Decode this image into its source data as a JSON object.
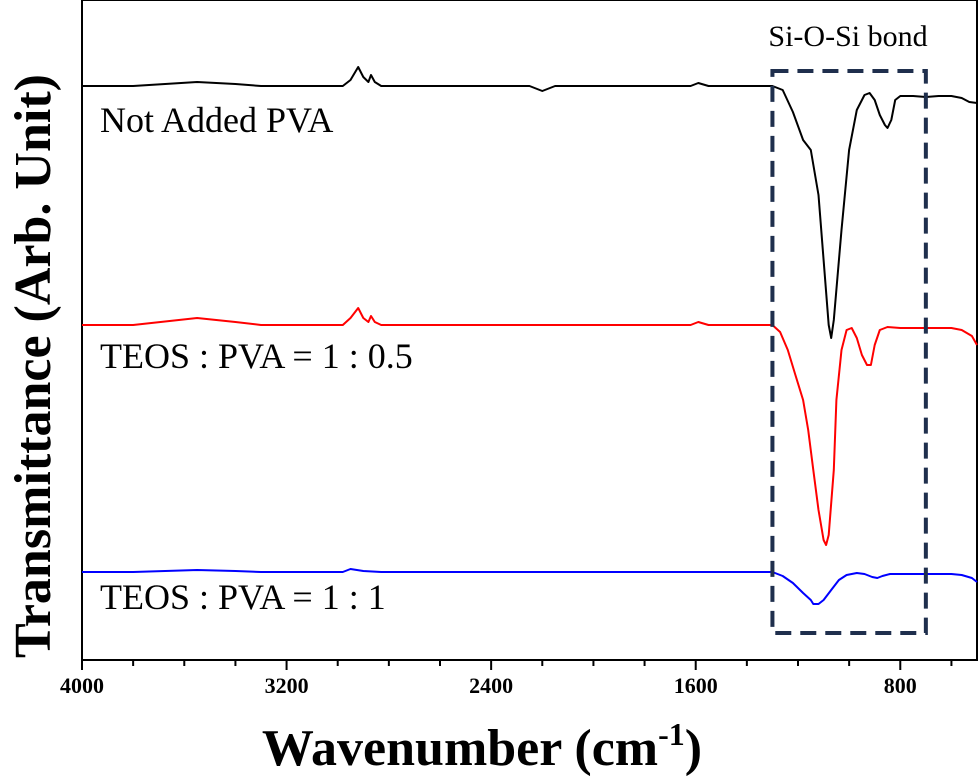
{
  "chart_data": {
    "type": "line",
    "title": "",
    "xlabel": "Wavenumber (cm",
    "xlabel_sup": "-1",
    "xlabel_close": ")",
    "ylabel": "Transmittance (Arb. Unit)",
    "xlim": [
      4000,
      500
    ],
    "x_reversed": true,
    "grid": false,
    "x_ticks": [
      4000,
      3200,
      2400,
      1600,
      800
    ],
    "x_tick_labels": [
      "4000",
      "3200",
      "2400",
      "1600",
      "800"
    ],
    "annotation": {
      "label": "Si-O-Si bond",
      "x_range": [
        1300,
        700
      ],
      "style": "dashed-box",
      "color": "#1f2f4d"
    },
    "series": [
      {
        "name": "Not Added PVA",
        "color": "#000000",
        "points": [
          [
            4000,
            86
          ],
          [
            3800,
            86
          ],
          [
            3550,
            82
          ],
          [
            3400,
            84
          ],
          [
            3300,
            86
          ],
          [
            2980,
            86
          ],
          [
            2950,
            80
          ],
          [
            2920,
            67
          ],
          [
            2900,
            77
          ],
          [
            2880,
            82
          ],
          [
            2870,
            75
          ],
          [
            2855,
            82
          ],
          [
            2830,
            86
          ],
          [
            2400,
            86
          ],
          [
            2250,
            86
          ],
          [
            2200,
            91
          ],
          [
            2150,
            86
          ],
          [
            1900,
            86
          ],
          [
            1620,
            86
          ],
          [
            1590,
            83
          ],
          [
            1550,
            86
          ],
          [
            1300,
            86
          ],
          [
            1260,
            90
          ],
          [
            1220,
            112
          ],
          [
            1180,
            140
          ],
          [
            1150,
            150
          ],
          [
            1120,
            195
          ],
          [
            1100,
            260
          ],
          [
            1080,
            325
          ],
          [
            1070,
            338
          ],
          [
            1060,
            320
          ],
          [
            1030,
            230
          ],
          [
            1000,
            150
          ],
          [
            970,
            110
          ],
          [
            940,
            95
          ],
          [
            920,
            93
          ],
          [
            900,
            100
          ],
          [
            880,
            115
          ],
          [
            860,
            125
          ],
          [
            850,
            128
          ],
          [
            835,
            120
          ],
          [
            820,
            100
          ],
          [
            800,
            96
          ],
          [
            750,
            96
          ],
          [
            700,
            97
          ],
          [
            650,
            96
          ],
          [
            600,
            96
          ],
          [
            560,
            98
          ],
          [
            530,
            102
          ],
          [
            500,
            103
          ]
        ]
      },
      {
        "name": "TEOS : PVA = 1 : 0.5",
        "color": "#ff0000",
        "points": [
          [
            4000,
            325
          ],
          [
            3800,
            325
          ],
          [
            3550,
            318
          ],
          [
            3400,
            322
          ],
          [
            3300,
            325
          ],
          [
            2980,
            325
          ],
          [
            2950,
            318
          ],
          [
            2920,
            308
          ],
          [
            2900,
            318
          ],
          [
            2880,
            322
          ],
          [
            2870,
            316
          ],
          [
            2855,
            322
          ],
          [
            2830,
            325
          ],
          [
            2400,
            325
          ],
          [
            1900,
            325
          ],
          [
            1620,
            325
          ],
          [
            1590,
            322
          ],
          [
            1550,
            325
          ],
          [
            1300,
            325
          ],
          [
            1270,
            332
          ],
          [
            1240,
            350
          ],
          [
            1210,
            375
          ],
          [
            1180,
            400
          ],
          [
            1160,
            430
          ],
          [
            1140,
            470
          ],
          [
            1120,
            510
          ],
          [
            1100,
            540
          ],
          [
            1090,
            545
          ],
          [
            1080,
            535
          ],
          [
            1060,
            470
          ],
          [
            1050,
            400
          ],
          [
            1030,
            350
          ],
          [
            1010,
            330
          ],
          [
            990,
            328
          ],
          [
            970,
            338
          ],
          [
            950,
            355
          ],
          [
            930,
            365
          ],
          [
            915,
            365
          ],
          [
            900,
            345
          ],
          [
            880,
            330
          ],
          [
            850,
            327
          ],
          [
            800,
            328
          ],
          [
            700,
            328
          ],
          [
            600,
            328
          ],
          [
            560,
            330
          ],
          [
            520,
            336
          ],
          [
            500,
            345
          ]
        ]
      },
      {
        "name": "TEOS : PVA = 1 : 1",
        "color": "#0000ff",
        "points": [
          [
            4000,
            572
          ],
          [
            3800,
            572
          ],
          [
            3550,
            570
          ],
          [
            3400,
            571
          ],
          [
            3300,
            572
          ],
          [
            2980,
            572
          ],
          [
            2950,
            569
          ],
          [
            2900,
            571
          ],
          [
            2830,
            572
          ],
          [
            2400,
            572
          ],
          [
            1900,
            572
          ],
          [
            1300,
            572
          ],
          [
            1260,
            576
          ],
          [
            1220,
            583
          ],
          [
            1180,
            593
          ],
          [
            1150,
            600
          ],
          [
            1140,
            604
          ],
          [
            1120,
            604
          ],
          [
            1100,
            600
          ],
          [
            1070,
            590
          ],
          [
            1040,
            580
          ],
          [
            1010,
            575
          ],
          [
            970,
            573
          ],
          [
            940,
            574
          ],
          [
            910,
            577
          ],
          [
            890,
            578
          ],
          [
            870,
            576
          ],
          [
            840,
            574
          ],
          [
            800,
            574
          ],
          [
            700,
            574
          ],
          [
            600,
            574
          ],
          [
            560,
            575
          ],
          [
            520,
            578
          ],
          [
            500,
            582
          ]
        ]
      }
    ]
  }
}
